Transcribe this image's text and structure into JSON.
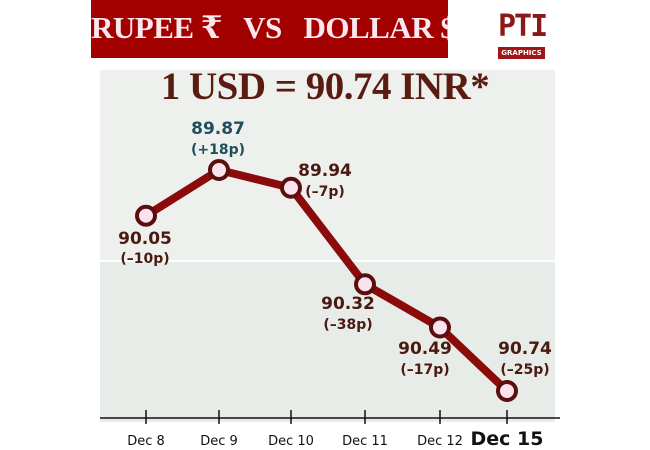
{
  "header": {
    "title": "RUPEE ₹   VS   DOLLAR $",
    "logo_text": "PTI",
    "logo_tag": "GRAPHICS"
  },
  "chart_data": {
    "type": "line",
    "title": "1 USD = 90.74 INR*",
    "categories": [
      "Dec 8",
      "Dec 9",
      "Dec 10",
      "Dec 11",
      "Dec 12",
      "Dec 15"
    ],
    "values": [
      90.05,
      89.87,
      89.94,
      90.32,
      90.49,
      90.74
    ],
    "value_labels": [
      "90.05",
      "89.87",
      "89.94",
      "90.32",
      "90.49",
      "90.74"
    ],
    "change_labels": [
      "(–10p)",
      "(+18p)",
      "(–7p)",
      "(–38p)",
      "(–17p)",
      "(–25p)"
    ],
    "y_axis": "inverted",
    "ylim": [
      89.87,
      90.74
    ],
    "grid": false,
    "colors": {
      "line": "#8b0a0a",
      "marker_fill": "#fbe3ee",
      "label": "#4a1a10",
      "label_highlight": "#1f4f5a",
      "banner": "#a30000"
    }
  }
}
